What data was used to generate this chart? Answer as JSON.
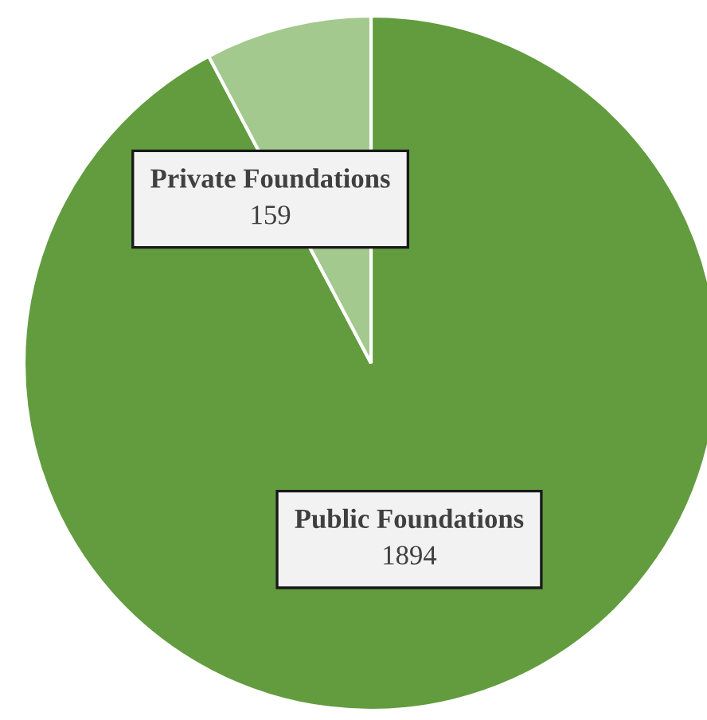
{
  "chart_data": {
    "type": "pie",
    "categories": [
      "Public Foundations",
      "Private Foundations"
    ],
    "values": [
      1894,
      159
    ],
    "colors": [
      "#629c3f",
      "#a3c98f"
    ],
    "data_labels": true
  }
}
